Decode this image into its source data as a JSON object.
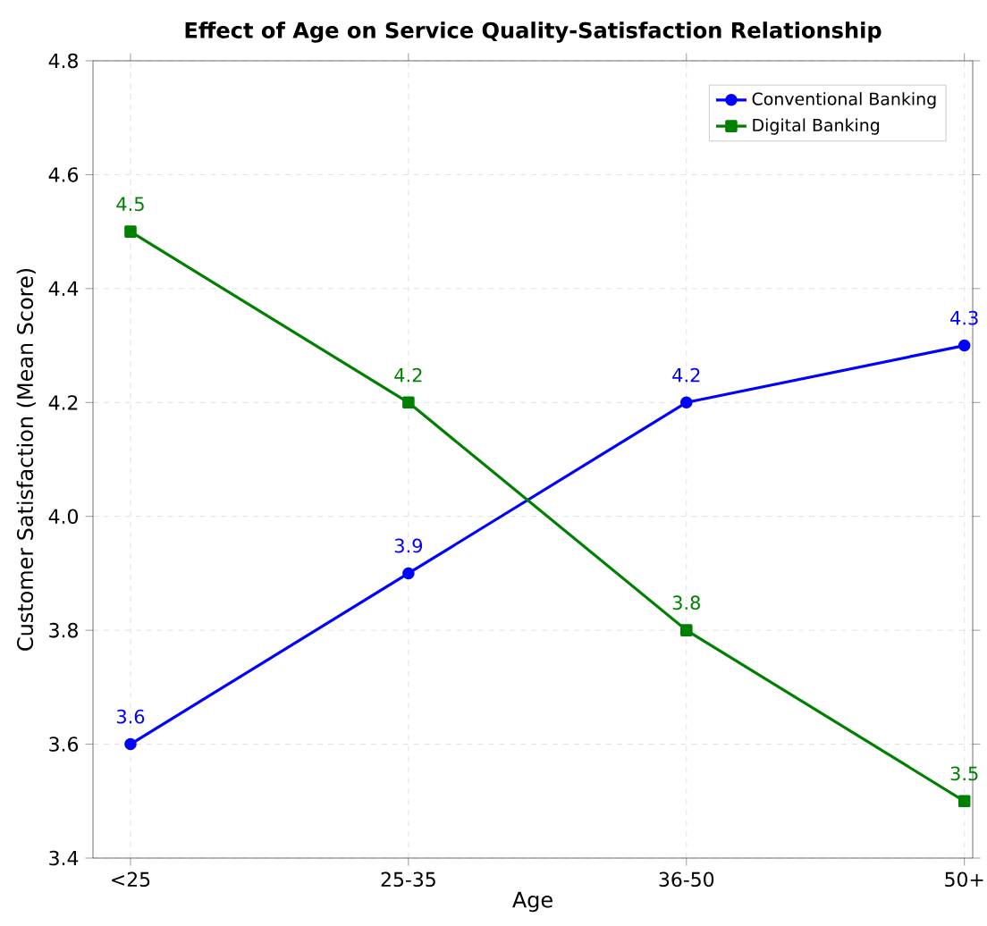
{
  "chart_data": {
    "type": "line",
    "title": "Effect of Age on Service Quality-Satisfaction Relationship",
    "xlabel": "Age",
    "ylabel": "Customer Satisfaction (Mean Score)",
    "categories": [
      "<25",
      "25-35",
      "36-50",
      "50+"
    ],
    "series": [
      {
        "name": "Conventional Banking",
        "color": "#0000ff",
        "marker": "circle",
        "values": [
          3.6,
          3.9,
          4.2,
          4.3
        ]
      },
      {
        "name": "Digital Banking",
        "color": "#008000",
        "marker": "square",
        "values": [
          4.5,
          4.2,
          3.8,
          3.5
        ]
      }
    ],
    "ylim": [
      3.4,
      4.8
    ],
    "yticks": [
      3.4,
      3.6,
      3.8,
      {
        "value": 4,
        "label": "4.0"
      },
      4.2,
      4.4,
      4.6,
      4.8
    ],
    "grid": true,
    "legend": "top right",
    "data_labels": true,
    "line_style": "solid"
  }
}
